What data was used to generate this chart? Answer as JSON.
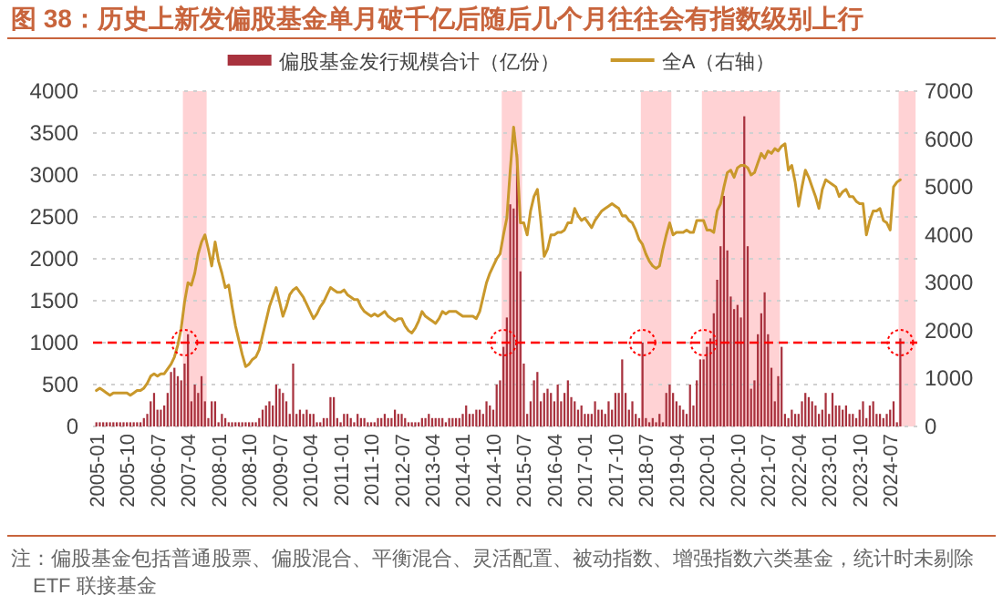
{
  "chart_data": {
    "type": "bar",
    "title": "图 38：历史上新发偏股基金单月破千亿后随后几个月往往会有指数级别上行",
    "x": [
      "2005-01",
      "2005-02",
      "2005-03",
      "2005-04",
      "2005-05",
      "2005-06",
      "2005-07",
      "2005-08",
      "2005-09",
      "2005-10",
      "2005-11",
      "2005-12",
      "2006-01",
      "2006-02",
      "2006-03",
      "2006-04",
      "2006-05",
      "2006-06",
      "2006-07",
      "2006-08",
      "2006-09",
      "2006-10",
      "2006-11",
      "2006-12",
      "2007-01",
      "2007-02",
      "2007-03",
      "2007-04",
      "2007-05",
      "2007-06",
      "2007-07",
      "2007-08",
      "2007-09",
      "2007-10",
      "2007-11",
      "2007-12",
      "2008-01",
      "2008-02",
      "2008-03",
      "2008-04",
      "2008-05",
      "2008-06",
      "2008-07",
      "2008-08",
      "2008-09",
      "2008-10",
      "2008-11",
      "2008-12",
      "2009-01",
      "2009-02",
      "2009-03",
      "2009-04",
      "2009-05",
      "2009-06",
      "2009-07",
      "2009-08",
      "2009-09",
      "2009-10",
      "2009-11",
      "2009-12",
      "2010-01",
      "2010-02",
      "2010-03",
      "2010-04",
      "2010-05",
      "2010-06",
      "2010-07",
      "2010-08",
      "2010-09",
      "2010-10",
      "2010-11",
      "2010-12",
      "2011-01",
      "2011-02",
      "2011-03",
      "2011-04",
      "2011-05",
      "2011-06",
      "2011-07",
      "2011-08",
      "2011-09",
      "2011-10",
      "2011-11",
      "2011-12",
      "2012-01",
      "2012-02",
      "2012-03",
      "2012-04",
      "2012-05",
      "2012-06",
      "2012-07",
      "2012-08",
      "2012-09",
      "2012-10",
      "2012-11",
      "2012-12",
      "2013-01",
      "2013-02",
      "2013-03",
      "2013-04",
      "2013-05",
      "2013-06",
      "2013-07",
      "2013-08",
      "2013-09",
      "2013-10",
      "2013-11",
      "2013-12",
      "2014-01",
      "2014-02",
      "2014-03",
      "2014-04",
      "2014-05",
      "2014-06",
      "2014-07",
      "2014-08",
      "2014-09",
      "2014-10",
      "2014-11",
      "2014-12",
      "2015-01",
      "2015-02",
      "2015-03",
      "2015-04",
      "2015-05",
      "2015-06",
      "2015-07",
      "2015-08",
      "2015-09",
      "2015-10",
      "2015-11",
      "2015-12",
      "2016-01",
      "2016-02",
      "2016-03",
      "2016-04",
      "2016-05",
      "2016-06",
      "2016-07",
      "2016-08",
      "2016-09",
      "2016-10",
      "2016-11",
      "2016-12",
      "2017-01",
      "2017-02",
      "2017-03",
      "2017-04",
      "2017-05",
      "2017-06",
      "2017-07",
      "2017-08",
      "2017-09",
      "2017-10",
      "2017-11",
      "2017-12",
      "2018-01",
      "2018-02",
      "2018-03",
      "2018-04",
      "2018-05",
      "2018-06",
      "2018-07",
      "2018-08",
      "2018-09",
      "2018-10",
      "2018-11",
      "2018-12",
      "2019-01",
      "2019-02",
      "2019-03",
      "2019-04",
      "2019-05",
      "2019-06",
      "2019-07",
      "2019-08",
      "2019-09",
      "2019-10",
      "2019-11",
      "2019-12",
      "2020-01",
      "2020-02",
      "2020-03",
      "2020-04",
      "2020-05",
      "2020-06",
      "2020-07",
      "2020-08",
      "2020-09",
      "2020-10",
      "2020-11",
      "2020-12",
      "2021-01",
      "2021-02",
      "2021-03",
      "2021-04",
      "2021-05",
      "2021-06",
      "2021-07",
      "2021-08",
      "2021-09",
      "2021-10",
      "2021-11",
      "2021-12",
      "2022-01",
      "2022-02",
      "2022-03",
      "2022-04",
      "2022-05",
      "2022-06",
      "2022-07",
      "2022-08",
      "2022-09",
      "2022-10",
      "2022-11",
      "2022-12",
      "2023-01",
      "2023-02",
      "2023-03",
      "2023-04",
      "2023-05",
      "2023-06",
      "2023-07",
      "2023-08",
      "2023-09",
      "2023-10",
      "2023-11",
      "2023-12",
      "2024-01",
      "2024-02",
      "2024-03",
      "2024-04",
      "2024-05",
      "2024-06",
      "2024-07",
      "2024-08",
      "2024-09",
      "2024-10"
    ],
    "series": [
      {
        "name": "偏股基金发行规模合计（亿份）",
        "color": "#a8323e",
        "values": [
          50,
          50,
          50,
          50,
          50,
          50,
          50,
          50,
          50,
          50,
          50,
          50,
          50,
          50,
          100,
          150,
          300,
          400,
          200,
          200,
          250,
          400,
          650,
          700,
          600,
          550,
          750,
          1100,
          300,
          500,
          400,
          600,
          300,
          100,
          300,
          300,
          50,
          150,
          100,
          50,
          50,
          50,
          50,
          50,
          50,
          50,
          50,
          50,
          100,
          200,
          250,
          300,
          250,
          500,
          450,
          400,
          300,
          150,
          750,
          150,
          200,
          150,
          200,
          150,
          150,
          50,
          50,
          100,
          100,
          350,
          350,
          100,
          50,
          150,
          150,
          100,
          50,
          150,
          100,
          100,
          50,
          50,
          50,
          100,
          100,
          150,
          100,
          100,
          200,
          150,
          150,
          100,
          50,
          50,
          50,
          50,
          100,
          100,
          150,
          100,
          100,
          100,
          100,
          50,
          100,
          100,
          100,
          100,
          150,
          250,
          150,
          150,
          200,
          200,
          150,
          300,
          250,
          200,
          500,
          550,
          950,
          1300,
          2650,
          2600,
          3250,
          1850,
          750,
          150,
          300,
          550,
          650,
          300,
          400,
          450,
          400,
          300,
          500,
          300,
          400,
          550,
          350,
          300,
          200,
          250,
          150,
          150,
          150,
          300,
          200,
          200,
          150,
          300,
          200,
          400,
          400,
          800,
          400,
          200,
          300,
          150,
          100,
          1000,
          100,
          50,
          100,
          50,
          150,
          50,
          400,
          500,
          400,
          300,
          250,
          200,
          150,
          500,
          250,
          550,
          800,
          800,
          950,
          1050,
          1350,
          1750,
          2150,
          2750,
          2100,
          1550,
          1400,
          1450,
          1300,
          3700,
          2150,
          450,
          550,
          1100,
          1350,
          1600,
          1100,
          700,
          300,
          600,
          950,
          150,
          100,
          200,
          150,
          150,
          300,
          400,
          350,
          300,
          250,
          150,
          200,
          400,
          150,
          400,
          250,
          250,
          200,
          250,
          150,
          150,
          100,
          200,
          300,
          100,
          250,
          300,
          150,
          150,
          100,
          150,
          200,
          300,
          50,
          1050
        ]
      },
      {
        "name": "全A（右轴）",
        "type": "line",
        "axis": "y2",
        "color": "#c9982b",
        "values": [
          750,
          800,
          750,
          700,
          650,
          700,
          700,
          700,
          700,
          700,
          650,
          700,
          750,
          750,
          800,
          900,
          1050,
          1100,
          1050,
          1100,
          1100,
          1200,
          1300,
          1450,
          1700,
          2050,
          2600,
          3000,
          2950,
          3200,
          3600,
          3850,
          4000,
          3700,
          3350,
          3850,
          3450,
          3200,
          2900,
          2950,
          2500,
          2100,
          1800,
          1500,
          1250,
          1300,
          1400,
          1450,
          1600,
          1900,
          2200,
          2500,
          2700,
          2900,
          2600,
          2300,
          2500,
          2750,
          2850,
          2900,
          2800,
          2700,
          2550,
          2400,
          2250,
          2350,
          2500,
          2600,
          2750,
          2900,
          2850,
          2800,
          2800,
          2850,
          2750,
          2700,
          2650,
          2650,
          2500,
          2400,
          2350,
          2300,
          2350,
          2300,
          2350,
          2400,
          2300,
          2250,
          2200,
          2250,
          2250,
          2100,
          2000,
          1950,
          2050,
          2200,
          2400,
          2300,
          2250,
          2200,
          2150,
          2250,
          2400,
          2350,
          2400,
          2400,
          2400,
          2350,
          2300,
          2300,
          2300,
          2300,
          2250,
          2400,
          2700,
          3000,
          3200,
          3350,
          3500,
          3600,
          4000,
          4350,
          5350,
          6250,
          5600,
          4250,
          4250,
          4000,
          4500,
          4800,
          4950,
          4300,
          3550,
          3700,
          4000,
          4000,
          4050,
          4050,
          4100,
          4250,
          4250,
          4550,
          4400,
          4300,
          4350,
          4250,
          4150,
          4300,
          4400,
          4500,
          4550,
          4600,
          4650,
          4600,
          4550,
          4400,
          4400,
          4300,
          4250,
          4100,
          3900,
          3800,
          3600,
          3450,
          3350,
          3300,
          3350,
          3700,
          4000,
          4250,
          4000,
          4050,
          4050,
          4050,
          4100,
          4050,
          4050,
          4300,
          4300,
          4300,
          4100,
          4100,
          4050,
          4500,
          4650,
          5000,
          5300,
          5350,
          5200,
          5400,
          5450,
          5450,
          5400,
          5250,
          5300,
          5500,
          5700,
          5600,
          5750,
          5700,
          5800,
          5750,
          5850,
          5900,
          5350,
          5450,
          5100,
          4600,
          5000,
          5350,
          5200,
          5000,
          4800,
          4550,
          4950,
          5150,
          5100,
          5050,
          5000,
          4800,
          4900,
          4950,
          4800,
          4800,
          4700,
          4650,
          4650,
          4000,
          4300,
          4500,
          4500,
          4550,
          4300,
          4250,
          4100,
          5000,
          5100,
          5150
        ]
      }
    ],
    "xlim": [
      "2004-12",
      "2025-03"
    ],
    "xticks": [
      "2005-01",
      "2005-10",
      "2006-07",
      "2007-04",
      "2008-01",
      "2008-10",
      "2009-07",
      "2010-04",
      "2011-01",
      "2011-10",
      "2012-07",
      "2013-04",
      "2014-01",
      "2014-10",
      "2015-07",
      "2016-04",
      "2017-01",
      "2017-10",
      "2018-07",
      "2019-04",
      "2020-01",
      "2020-10",
      "2021-07",
      "2022-04",
      "2023-01",
      "2023-10",
      "2024-07"
    ],
    "ylim": [
      0,
      4000
    ],
    "yticks": [
      0,
      500,
      1000,
      1500,
      2000,
      2500,
      3000,
      3500,
      4000
    ],
    "y2lim": [
      0,
      7000
    ],
    "y2ticks": [
      0,
      1000,
      2000,
      3000,
      4000,
      5000,
      6000,
      7000
    ],
    "grid": "y",
    "legend": "top",
    "ref_lines": [
      {
        "axis": "y",
        "value": 1000,
        "color": "#ff0000",
        "line_style": "dashed"
      }
    ],
    "bands": [
      {
        "axis": "x",
        "from": "2007-03",
        "to": "2007-09",
        "color": "#ffd2d4"
      },
      {
        "axis": "x",
        "from": "2015-01",
        "to": "2015-06",
        "color": "#ffd2d4"
      },
      {
        "axis": "x",
        "from": "2018-06",
        "to": "2019-02",
        "color": "#ffd2d4"
      },
      {
        "axis": "x",
        "from": "2019-12",
        "to": "2021-10",
        "color": "#ffd2d4"
      },
      {
        "axis": "x",
        "from": "2024-10",
        "to": "2025-02",
        "color": "#ffd2d4"
      }
    ],
    "annotations": [
      "注：偏股基金包括普通股票、偏股混合、平衡混合、灵活配置、被动指数、增强指数六类基金，统计时未剔除 ETF 联接基金"
    ]
  }
}
